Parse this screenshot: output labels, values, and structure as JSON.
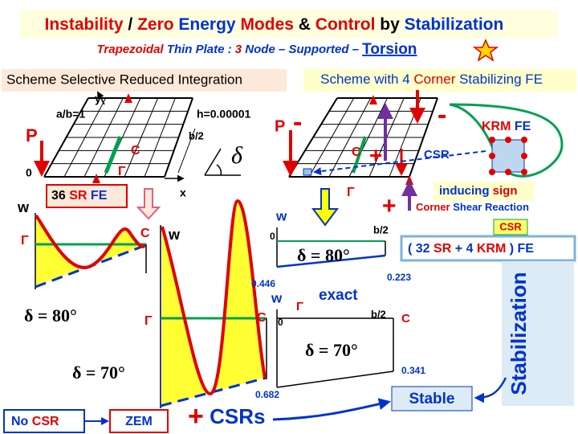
{
  "title": [
    "Instability",
    " / ",
    "Zero",
    " Energy",
    " Modes",
    " & ",
    "Control",
    " by ",
    "Stabilization"
  ],
  "subtitle": [
    "Trapezoidal",
    " Thin Plate : ",
    "3",
    " Node – Supported – ",
    "Torsion"
  ],
  "left": {
    "heading": "Scheme Selective Reduced Integration",
    "plate": {
      "aspect": "a/b=1",
      "thickness": "h=0.00001",
      "y": "y",
      "x": "x",
      "load": "P",
      "origin": "0",
      "point_c": "C",
      "edge_gamma": "Γ",
      "half_width": "b/2",
      "angle": "δ"
    },
    "element": [
      "36",
      " SR",
      " FE"
    ],
    "plot_80": {
      "w": "w",
      "gamma": "Γ",
      "c": "C",
      "angle": "δ = 80°"
    },
    "plot_70": {
      "w": "w",
      "gamma": "Γ",
      "c": "C",
      "angle": "δ = 70°",
      "value": "0.682"
    }
  },
  "right": {
    "heading": [
      "Scheme with 4 ",
      "Corner",
      " Stabilizing FE"
    ],
    "plate": {
      "load": "P",
      "minus_left": "-",
      "minus_right": "-",
      "point_c": "C",
      "plus": "+",
      "csr": "CSR",
      "edge_gamma": "Γ",
      "plus_lower": "+"
    },
    "krm": [
      "KRM",
      " FE"
    ],
    "inducing": [
      "inducing",
      " sign"
    ],
    "corner_shear": [
      "Corner",
      " Shear Reaction"
    ],
    "csr_tag": "CSR",
    "element": [
      "( 32 ",
      "SR",
      " + 4 ",
      "KRM",
      " ) FE"
    ],
    "plot_80": {
      "w": "w",
      "origin": "0",
      "half_width": "b/2",
      "angle": "δ = 80°",
      "left_value": "0.446",
      "right_value": "0.223",
      "note": "exact"
    },
    "plot_70": {
      "w": "w",
      "gamma": "Γ",
      "origin": "0",
      "half_width": "b/2",
      "c": "C",
      "angle": "δ = 70°",
      "value": "0.341"
    }
  },
  "footer": {
    "no_csr": [
      "No ",
      "CSR"
    ],
    "zem": "ZEM",
    "csrs": [
      "+",
      " CSRs"
    ],
    "stable": "Stable",
    "stabilization": "Stabilization"
  }
}
